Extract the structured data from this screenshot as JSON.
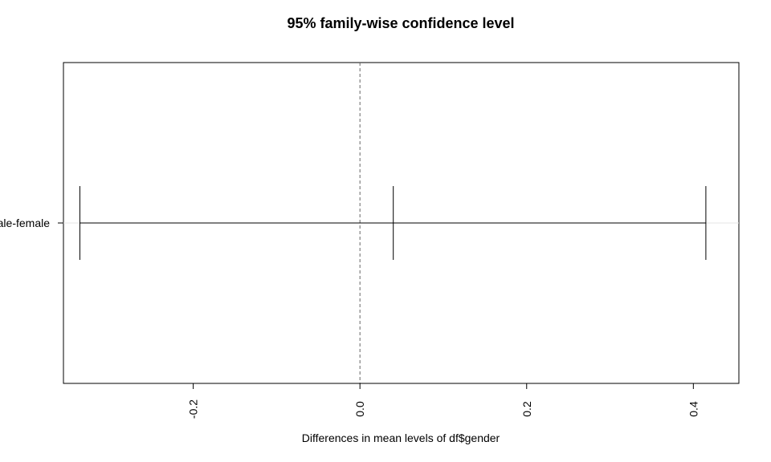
{
  "chart_data": {
    "type": "errorbar",
    "title": "95% family-wise confidence level",
    "xlabel": "Differences in mean levels of df$gender",
    "ylabel": "",
    "xlim": [
      -0.3557,
      0.4546
    ],
    "x_ticks": [
      "-0.2",
      "0.0",
      "0.2",
      "0.4"
    ],
    "x_tick_values": [
      -0.2,
      0.0,
      0.2,
      0.4
    ],
    "reference_line": 0,
    "grid": false,
    "intervals": [
      {
        "label": "male-female",
        "diff": 0.04,
        "lwr": -0.336,
        "upr": 0.415
      }
    ]
  }
}
